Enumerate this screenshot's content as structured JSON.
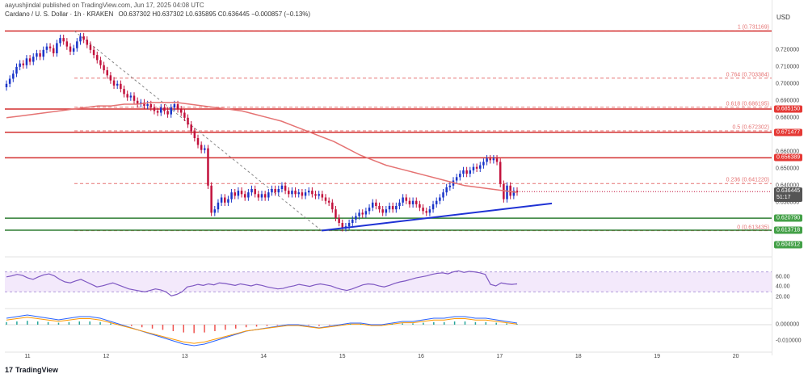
{
  "header": {
    "publisher": "aayushjindal published on TradingView.com, Jun 17, 2025 04:08 UTC",
    "symbol": "Cardano / U. S. Dollar · 1h · KRAKEN",
    "ohlc": "O0.637302  H0.637302  L0.635895  C0.636445  −0.000857 (−0.13%)",
    "currency": "USD"
  },
  "colors": {
    "up": "#1a35c9",
    "down": "#c2113c",
    "ma": "#e57373",
    "resistance": "#d32f2f",
    "support": "#2e7d32",
    "trendline": "#1f32d4",
    "fib": "#e57373",
    "rsi": "#7e57c2",
    "rsi_band": "#f3e9fb"
  },
  "price_axis": {
    "ticks": [
      "0.720000",
      "0.710000",
      "0.700000",
      "0.690000",
      "0.680000",
      "0.660000",
      "0.650000",
      "0.640000",
      "0.630000"
    ],
    "tick_values": [
      0.72,
      0.71,
      0.7,
      0.69,
      0.68,
      0.66,
      0.65,
      0.64,
      0.63
    ],
    "tags": [
      {
        "label": "0.685150",
        "value": 0.68515,
        "style": "red"
      },
      {
        "label": "0.671477",
        "value": 0.671477,
        "style": "red"
      },
      {
        "label": "0.656389",
        "value": 0.656389,
        "style": "red"
      },
      {
        "label": "0.620790",
        "value": 0.62079,
        "style": "green"
      },
      {
        "label": "0.613718",
        "value": 0.613718,
        "style": "green"
      },
      {
        "label": "0.604912",
        "value": 0.604912,
        "style": "green"
      }
    ],
    "current": {
      "price": "0.636445",
      "countdown": "51:17",
      "value": 0.636445
    }
  },
  "fib_levels": [
    {
      "label": "1 (0.731169)",
      "value": 0.731169
    },
    {
      "label": "0.764 (0.703384)",
      "value": 0.703384
    },
    {
      "label": "0.618 (0.686195)",
      "value": 0.686195
    },
    {
      "label": "0.5 (0.672302)",
      "value": 0.672302
    },
    {
      "label": "0.236 (0.641220)",
      "value": 0.64122
    },
    {
      "label": "0 (0.613435)",
      "value": 0.613435
    }
  ],
  "horizontal_lines": [
    {
      "value": 0.731169,
      "color": "resistance"
    },
    {
      "value": 0.68515,
      "color": "resistance"
    },
    {
      "value": 0.671477,
      "color": "resistance"
    },
    {
      "value": 0.656389,
      "color": "resistance"
    },
    {
      "value": 0.62079,
      "color": "support"
    },
    {
      "value": 0.613718,
      "color": "support"
    }
  ],
  "rsi_axis": [
    "60.00",
    "40.00",
    "20.00"
  ],
  "rsi_tick_values": [
    60,
    40,
    20
  ],
  "macd_axis": [
    "0.000000",
    "-0.010000"
  ],
  "macd_tick_values": [
    0,
    -0.01
  ],
  "time_axis": [
    "11",
    "12",
    "13",
    "14",
    "15",
    "16",
    "17",
    "18",
    "19",
    "20"
  ],
  "footer": {
    "brand": "TradingView",
    "logo": "17"
  },
  "chart_data": {
    "type": "candlestick",
    "interval": "1h",
    "x_start": "11",
    "x_end": "20",
    "close": [
      0.7,
      0.703,
      0.706,
      0.71,
      0.712,
      0.711,
      0.715,
      0.713,
      0.716,
      0.718,
      0.716,
      0.72,
      0.722,
      0.721,
      0.718,
      0.724,
      0.727,
      0.725,
      0.722,
      0.719,
      0.721,
      0.725,
      0.728,
      0.726,
      0.723,
      0.72,
      0.717,
      0.714,
      0.711,
      0.708,
      0.705,
      0.702,
      0.699,
      0.7,
      0.697,
      0.694,
      0.692,
      0.693,
      0.69,
      0.688,
      0.689,
      0.687,
      0.688,
      0.686,
      0.684,
      0.683,
      0.686,
      0.684,
      0.682,
      0.686,
      0.688,
      0.685,
      0.683,
      0.68,
      0.676,
      0.672,
      0.668,
      0.664,
      0.661,
      0.662,
      0.64,
      0.624,
      0.626,
      0.63,
      0.633,
      0.63,
      0.632,
      0.636,
      0.634,
      0.637,
      0.635,
      0.633,
      0.636,
      0.638,
      0.635,
      0.633,
      0.635,
      0.633,
      0.636,
      0.638,
      0.636,
      0.638,
      0.64,
      0.637,
      0.635,
      0.637,
      0.635,
      0.636,
      0.634,
      0.636,
      0.637,
      0.635,
      0.634,
      0.635,
      0.633,
      0.631,
      0.63,
      0.626,
      0.621,
      0.618,
      0.615,
      0.616,
      0.618,
      0.62,
      0.622,
      0.624,
      0.623,
      0.625,
      0.627,
      0.63,
      0.628,
      0.626,
      0.624,
      0.626,
      0.628,
      0.626,
      0.628,
      0.63,
      0.633,
      0.631,
      0.629,
      0.631,
      0.629,
      0.627,
      0.625,
      0.624,
      0.626,
      0.629,
      0.631,
      0.633,
      0.636,
      0.639,
      0.64,
      0.643,
      0.645,
      0.647,
      0.649,
      0.647,
      0.649,
      0.651,
      0.65,
      0.652,
      0.654,
      0.656,
      0.655,
      0.656,
      0.654,
      0.641,
      0.632,
      0.64,
      0.634,
      0.637,
      0.636
    ],
    "ma": [
      0.68,
      0.681,
      0.682,
      0.683,
      0.684,
      0.685,
      0.686,
      0.687,
      0.687,
      0.688,
      0.688,
      0.689,
      0.689,
      0.689,
      0.688,
      0.687,
      0.686,
      0.685,
      0.684,
      0.682,
      0.68,
      0.678,
      0.675,
      0.672,
      0.669,
      0.666,
      0.662,
      0.658,
      0.655,
      0.652,
      0.65,
      0.648,
      0.646,
      0.644,
      0.642,
      0.64,
      0.639,
      0.638,
      0.637,
      0.636
    ],
    "rsi": [
      60,
      62,
      65,
      63,
      58,
      55,
      60,
      64,
      66,
      62,
      55,
      50,
      48,
      52,
      55,
      50,
      45,
      40,
      42,
      45,
      48,
      44,
      40,
      36,
      34,
      32,
      30,
      33,
      36,
      34,
      30,
      22,
      25,
      30,
      40,
      42,
      45,
      43,
      46,
      44,
      48,
      47,
      45,
      43,
      46,
      44,
      42,
      45,
      43,
      40,
      38,
      36,
      37,
      40,
      42,
      45,
      43,
      41,
      44,
      46,
      44,
      42,
      38,
      35,
      33,
      36,
      40,
      44,
      46,
      45,
      42,
      40,
      43,
      47,
      50,
      52,
      55,
      58,
      60,
      62,
      65,
      67,
      68,
      66,
      70,
      72,
      69,
      71,
      70,
      68,
      65,
      45,
      42,
      48,
      46,
      45,
      46
    ],
    "macd": [
      0.004,
      0.005,
      0.006,
      0.005,
      0.004,
      0.003,
      0.004,
      0.005,
      0.005,
      0.004,
      0.002,
      0.0,
      -0.002,
      -0.004,
      -0.006,
      -0.008,
      -0.01,
      -0.012,
      -0.013,
      -0.012,
      -0.01,
      -0.008,
      -0.006,
      -0.004,
      -0.003,
      -0.002,
      -0.001,
      0.0,
      0.0,
      -0.001,
      -0.002,
      -0.001,
      0.0,
      0.001,
      0.001,
      0.0,
      0.0,
      0.001,
      0.002,
      0.002,
      0.003,
      0.004,
      0.004,
      0.005,
      0.005,
      0.004,
      0.004,
      0.003,
      0.002,
      0.001
    ],
    "ylim": [
      0.598,
      0.738
    ]
  }
}
